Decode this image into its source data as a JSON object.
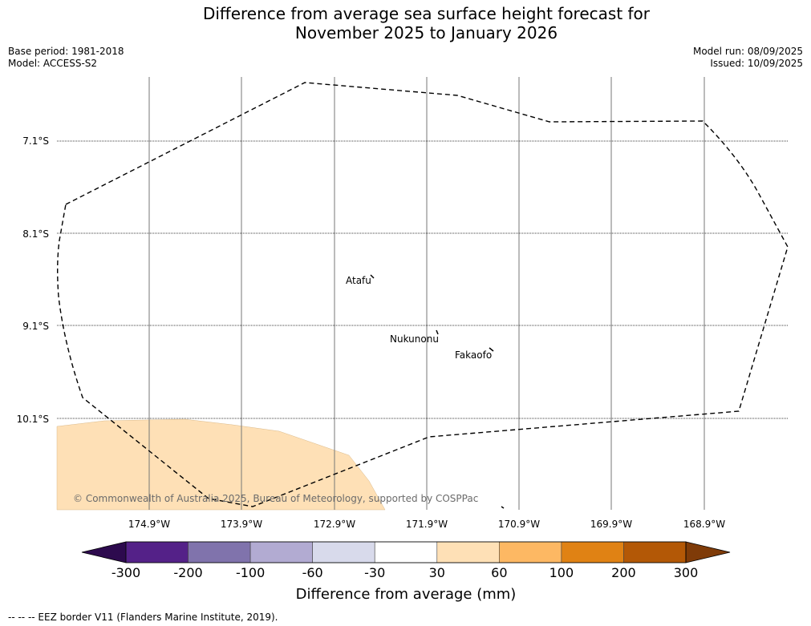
{
  "title_line1": "Difference from average sea surface height forecast for",
  "title_line2": "November 2025 to January 2026",
  "base_period": "Base period: 1981-2018",
  "model": "Model: ACCESS-S2",
  "model_run": "Model run: 08/09/2025",
  "issued": "Issued: 10/09/2025",
  "lat_labels": [
    "7.1°S",
    "8.1°S",
    "9.1°S",
    "10.1°S"
  ],
  "lon_labels": [
    "174.9°W",
    "173.9°W",
    "172.9°W",
    "171.9°W",
    "170.9°W",
    "169.9°W",
    "168.9°W"
  ],
  "places": [
    {
      "name": "Atafu"
    },
    {
      "name": "Nukunonu"
    },
    {
      "name": "Fakaofo"
    }
  ],
  "copyright": "© Commonwealth of Australia 2025, Bureau of Meteorology, supported by COSPPac",
  "colorbar": {
    "ticks": [
      "-300",
      "-200",
      "-100",
      "-60",
      "-30",
      "30",
      "60",
      "100",
      "200",
      "300"
    ],
    "colors": [
      "#2d0a4e",
      "#542188",
      "#8073ac",
      "#b2abd2",
      "#d8daeb",
      "#ffffff",
      "#fee0b6",
      "#fdb863",
      "#e08214",
      "#b35806",
      "#7f3b08"
    ],
    "label": "Difference from average (mm)"
  },
  "footnote": "--  --  -- EEZ border V11 (Flanders Marine Institute, 2019)."
}
